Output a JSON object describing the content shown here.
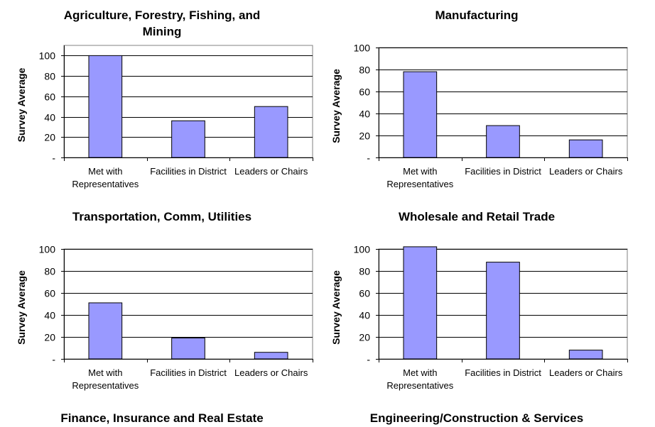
{
  "colors": {
    "bar_fill": "#9999ff",
    "bar_stroke": "#000000",
    "grid": "#000000",
    "frame": "#808080"
  },
  "chart_data": [
    {
      "type": "bar",
      "title": "Agriculture, Forestry, Fishing, and Mining",
      "title_lines": [
        "Agriculture, Forestry, Fishing, and",
        "Mining"
      ],
      "ylabel": "Survey Average",
      "xlabel": "",
      "categories": [
        "Met with Representatives",
        "Facilities in District",
        "Leaders or Chairs"
      ],
      "category_lines": [
        [
          "Met with",
          "Representatives"
        ],
        [
          "Facilities in District"
        ],
        [
          "Leaders or Chairs"
        ]
      ],
      "values": [
        100,
        36,
        50
      ],
      "ylim": [
        0,
        110
      ],
      "yticks": [
        0,
        20,
        40,
        60,
        80,
        100
      ],
      "ytick_labels": [
        "-",
        "20",
        "40",
        "60",
        "80",
        "100"
      ],
      "grid": true,
      "legend": "none"
    },
    {
      "type": "bar",
      "title": "Manufacturing",
      "title_lines": [
        "Manufacturing"
      ],
      "ylabel": "Survey Average",
      "xlabel": "",
      "categories": [
        "Met with Representatives",
        "Facilities in District",
        "Leaders or Chairs"
      ],
      "category_lines": [
        [
          "Met with",
          "Representatives"
        ],
        [
          "Facilities in District"
        ],
        [
          "Leaders or Chairs"
        ]
      ],
      "values": [
        78,
        29,
        16
      ],
      "ylim": [
        0,
        100
      ],
      "yticks": [
        0,
        20,
        40,
        60,
        80,
        100
      ],
      "ytick_labels": [
        "-",
        "20",
        "40",
        "60",
        "80",
        "100"
      ],
      "grid": true,
      "legend": "none"
    },
    {
      "type": "bar",
      "title": "Transportation, Comm, Utilities",
      "title_lines": [
        "Transportation, Comm, Utilities"
      ],
      "ylabel": "Survey Average",
      "xlabel": "",
      "categories": [
        "Met with Representatives",
        "Facilities in District",
        "Leaders or Chairs"
      ],
      "category_lines": [
        [
          "Met with",
          "Representatives"
        ],
        [
          "Facilities in District"
        ],
        [
          "Leaders or Chairs"
        ]
      ],
      "values": [
        51,
        19,
        6
      ],
      "ylim": [
        0,
        100
      ],
      "yticks": [
        0,
        20,
        40,
        60,
        80,
        100
      ],
      "ytick_labels": [
        "-",
        "20",
        "40",
        "60",
        "80",
        "100"
      ],
      "grid": true,
      "legend": "none"
    },
    {
      "type": "bar",
      "title": "Wholesale and Retail Trade",
      "title_lines": [
        "Wholesale and Retail Trade"
      ],
      "ylabel": "Survey Average",
      "xlabel": "",
      "categories": [
        "Met with Representatives",
        "Facilities in District",
        "Leaders or Chairs"
      ],
      "category_lines": [
        [
          "Met with",
          "Representatives"
        ],
        [
          "Facilities in District"
        ],
        [
          "Leaders or Chairs"
        ]
      ],
      "values": [
        102,
        88,
        8
      ],
      "ylim": [
        0,
        100
      ],
      "yticks": [
        0,
        20,
        40,
        60,
        80,
        100
      ],
      "ytick_labels": [
        "-",
        "20",
        "40",
        "60",
        "80",
        "100"
      ],
      "grid": true,
      "legend": "none"
    },
    {
      "type": "bar",
      "title": "Finance, Insurance and Real Estate",
      "title_lines": [
        "Finance, Insurance and Real Estate"
      ],
      "categories": [],
      "values": []
    },
    {
      "type": "bar",
      "title": "Engineering/Construction & Services",
      "title_lines": [
        "Engineering/Construction & Services"
      ],
      "categories": [],
      "values": []
    }
  ]
}
